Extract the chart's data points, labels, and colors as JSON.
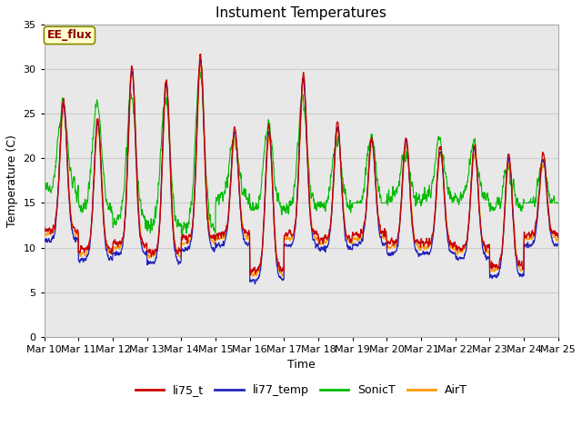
{
  "title": "Instument Temperatures",
  "xlabel": "Time",
  "ylabel": "Temperature (C)",
  "ylim": [
    0,
    35
  ],
  "yticks": [
    0,
    5,
    10,
    15,
    20,
    25,
    30,
    35
  ],
  "x_tick_labels": [
    "Mar 10",
    "Mar 11",
    "Mar 12",
    "Mar 13",
    "Mar 14",
    "Mar 15",
    "Mar 16",
    "Mar 17",
    "Mar 18",
    "Mar 19",
    "Mar 20",
    "Mar 21",
    "Mar 22",
    "Mar 23",
    "Mar 24",
    "Mar 25"
  ],
  "color_li75": "#cc0000",
  "color_li77": "#2222bb",
  "color_sonic": "#00bb00",
  "color_airt": "#ff9900",
  "bg_color": "#e8e8e8",
  "grid_color": "#cccccc",
  "annotation_text": "EE_flux",
  "annotation_bg": "#ffffcc",
  "annotation_border": "#888800",
  "annotation_text_color": "#880000",
  "legend_labels": [
    "li75_t",
    "li77_temp",
    "SonicT",
    "AirT"
  ],
  "title_fontsize": 11,
  "axis_fontsize": 9,
  "tick_fontsize": 8,
  "daily_mins_li75": [
    12.0,
    9.8,
    10.5,
    9.5,
    11.0,
    11.5,
    7.5,
    11.5,
    11.0,
    11.5,
    10.5,
    10.5,
    10.0,
    8.0,
    11.5
  ],
  "daily_maxs_li75": [
    26.5,
    24.5,
    30.5,
    29.0,
    31.5,
    23.5,
    23.5,
    29.5,
    24.0,
    22.5,
    22.5,
    21.5,
    21.5,
    20.5,
    20.5
  ],
  "daily_mins_sonic": [
    16.5,
    14.5,
    13.0,
    12.5,
    12.0,
    15.5,
    14.5,
    14.5,
    14.5,
    14.5,
    15.5,
    15.5,
    15.5,
    14.5,
    14.5
  ],
  "daily_maxs_sonic": [
    26.0,
    26.0,
    27.0,
    27.0,
    29.5,
    22.5,
    24.0,
    26.5,
    22.0,
    22.5,
    20.5,
    22.0,
    21.5,
    19.0,
    19.5
  ]
}
